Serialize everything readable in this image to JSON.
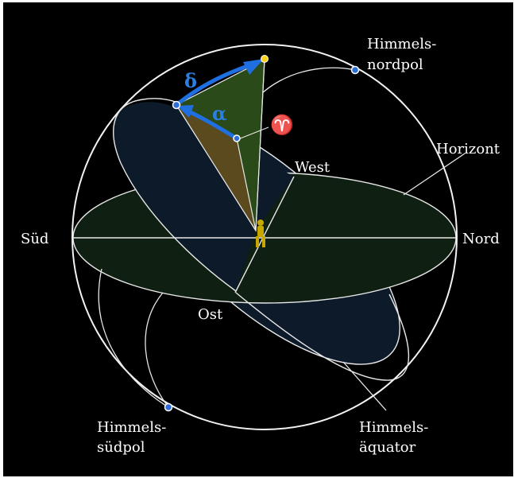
{
  "labels": {
    "north_pole_line1": "Himmels-",
    "north_pole_line2": "nordpol",
    "south_pole_line1": "Himmels-",
    "south_pole_line2": "südpol",
    "equator_line1": "Himmels-",
    "equator_line2": "äquator",
    "horizon": "Horizont",
    "south": "Süd",
    "north": "Nord",
    "west": "West",
    "east": "Ost",
    "delta": "δ",
    "alpha": "α",
    "vernal_point": "♈"
  },
  "colors": {
    "background": "#000000",
    "frame": "#ffffff",
    "sphere_line": "#e8e8e8",
    "horizon_fill": "#0f1f12",
    "equator_fill": "#0c1a2a",
    "declination_fill": "#2a4a1a",
    "hour_angle_fill": "#5a4a1e",
    "arrow": "#1f6fe0",
    "pole_marker": "#2e6ed8",
    "star_marker": "#ffd21a",
    "observer": "#c8a800"
  },
  "icons": {
    "observer": "person-figure-icon",
    "star": "star-dot-icon"
  }
}
